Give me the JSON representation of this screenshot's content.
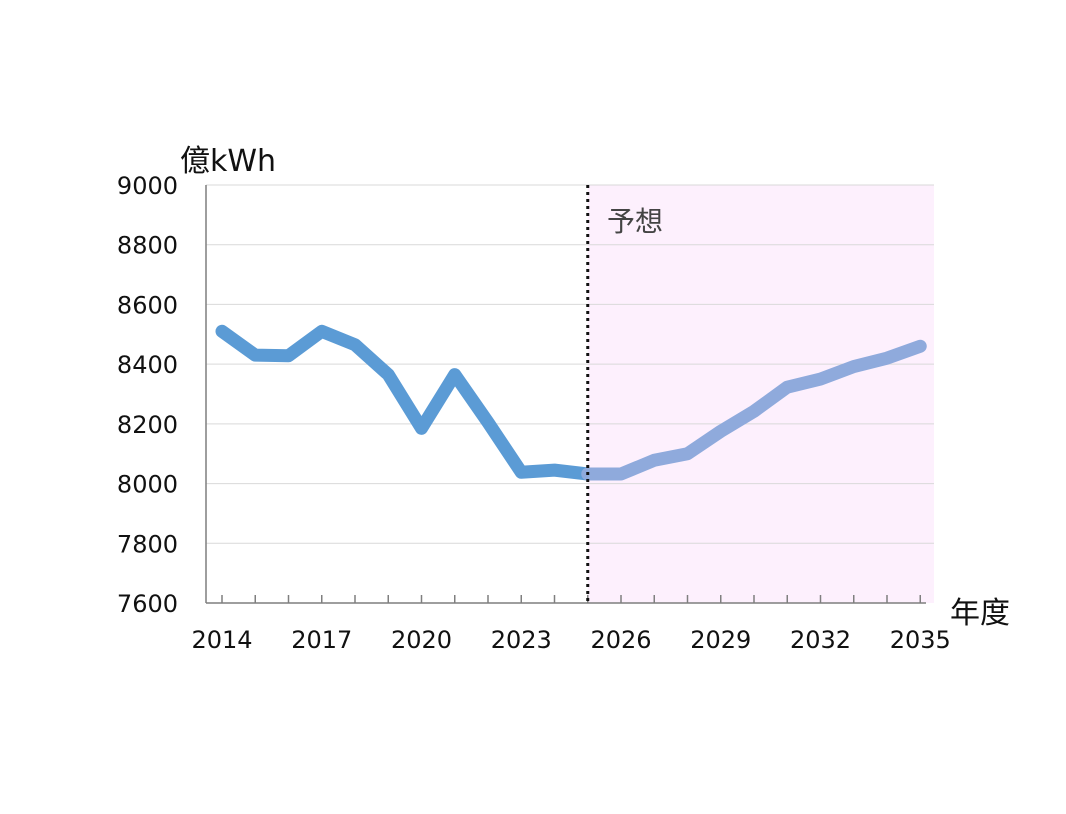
{
  "chart_data": {
    "type": "line",
    "ylabel": "億kWh",
    "xlabel": "年度",
    "forecast_label": "予想",
    "ylim": [
      7600,
      9000
    ],
    "yticks": [
      9000,
      8800,
      8600,
      8400,
      8200,
      8000,
      7800,
      7600
    ],
    "x": [
      2014,
      2015,
      2016,
      2017,
      2018,
      2019,
      2020,
      2021,
      2022,
      2023,
      2024,
      2025,
      2026,
      2027,
      2028,
      2029,
      2030,
      2031,
      2032,
      2033,
      2034,
      2035
    ],
    "xtick_labels": [
      "2014",
      "2017",
      "2020",
      "2023",
      "2026",
      "2029",
      "2032",
      "2035"
    ],
    "forecast_start": 2025,
    "grid": true,
    "series": [
      {
        "values": [
          8510,
          8430,
          8428,
          8510,
          8465,
          8365,
          8185,
          8365,
          8205,
          8038,
          8045,
          8032,
          null,
          null,
          null,
          null,
          null,
          null,
          null,
          null,
          null,
          null
        ],
        "color": "#5b9bd5"
      },
      {
        "values": [
          null,
          null,
          null,
          null,
          null,
          null,
          null,
          null,
          null,
          null,
          null,
          8032,
          8032,
          8078,
          8100,
          8175,
          8242,
          8323,
          8350,
          8392,
          8420,
          8460
        ],
        "color": "#8faadc"
      }
    ],
    "forecast_shade_color": "#fdf0fd"
  }
}
